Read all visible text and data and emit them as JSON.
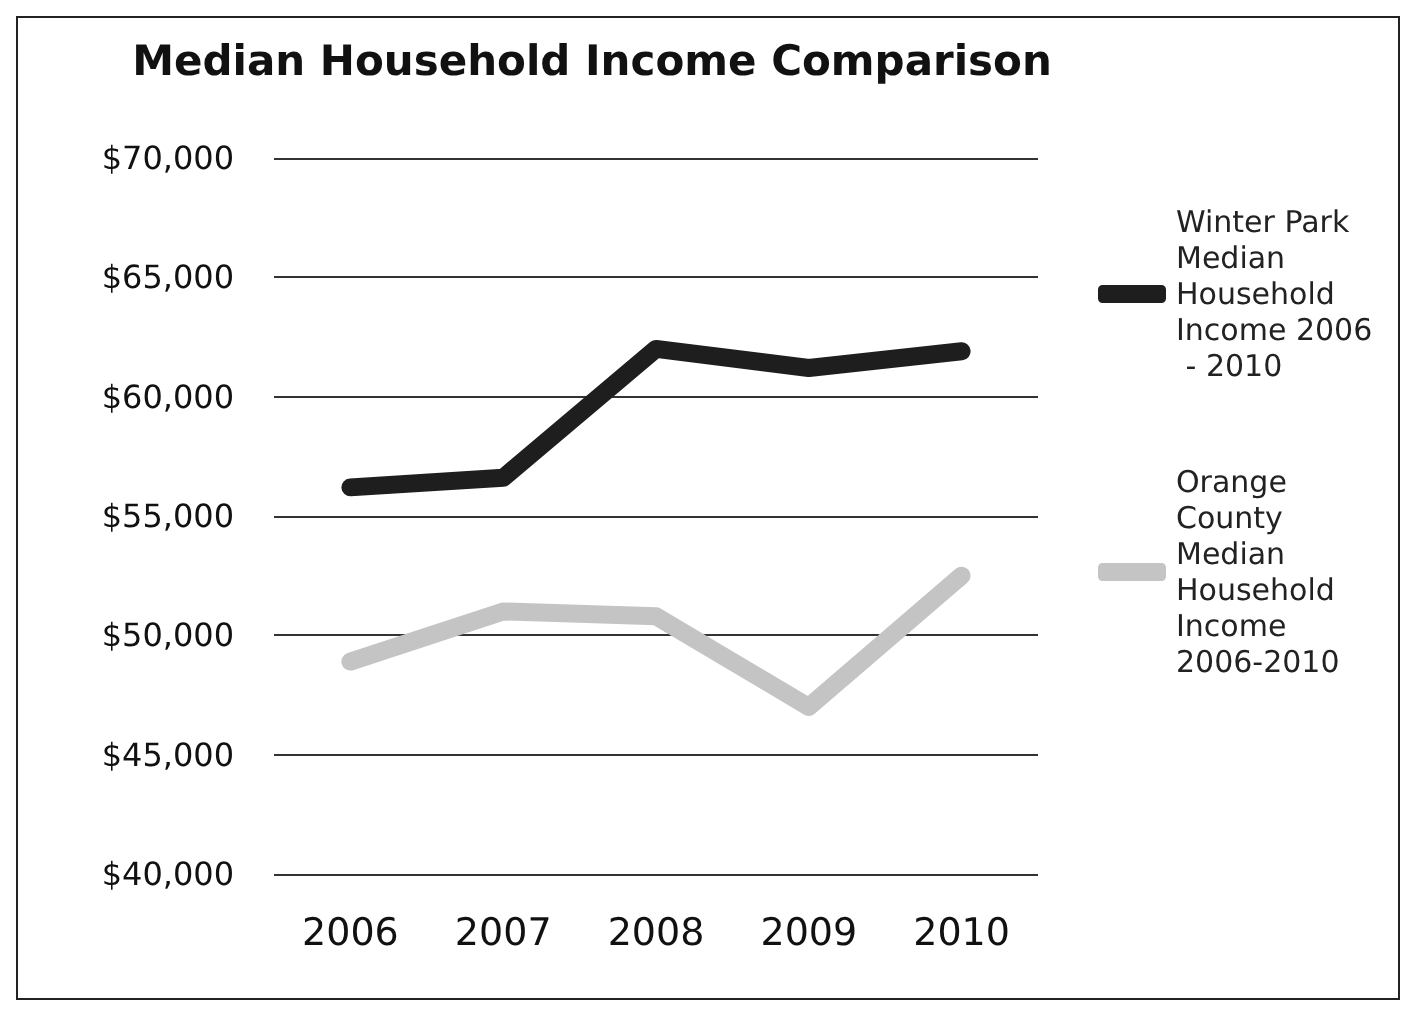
{
  "chart_data": {
    "type": "line",
    "title": "Median Household Income Comparison",
    "categories": [
      "2006",
      "2007",
      "2008",
      "2009",
      "2010"
    ],
    "series": [
      {
        "name": "Winter Park Median Household Income 2006 - 2010",
        "color": "#1e1e1e",
        "values": [
          56200,
          56600,
          62000,
          61200,
          61900
        ]
      },
      {
        "name": "Orange County Median Household Income 2006-2010",
        "color": "#c4c4c4",
        "values": [
          48900,
          51000,
          50800,
          47000,
          52500
        ]
      }
    ],
    "ylim": [
      40000,
      70000
    ],
    "yticks": [
      {
        "value": 40000,
        "label": "$40,000"
      },
      {
        "value": 45000,
        "label": "$45,000"
      },
      {
        "value": 50000,
        "label": "$50,000"
      },
      {
        "value": 55000,
        "label": "$55,000"
      },
      {
        "value": 60000,
        "label": "$60,000"
      },
      {
        "value": 65000,
        "label": "$65,000"
      },
      {
        "value": 70000,
        "label": "$70,000"
      }
    ],
    "grid": "y",
    "legend": "right",
    "line_style": "solid"
  }
}
